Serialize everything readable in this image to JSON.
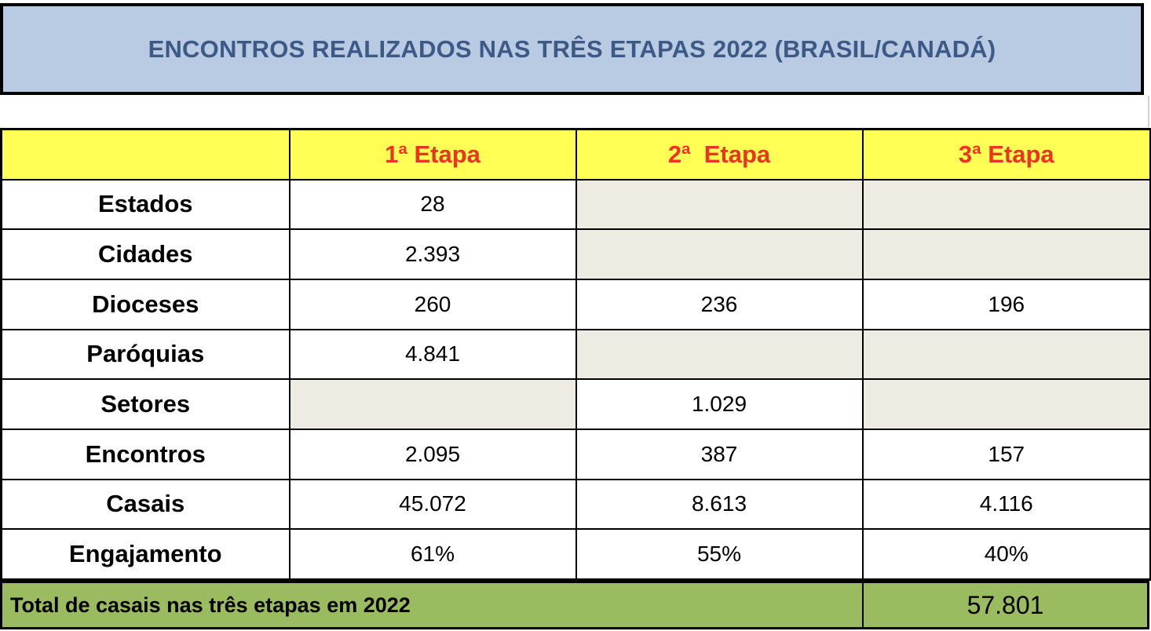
{
  "title": "ENCONTROS REALIZADOS NAS TRÊS ETAPAS 2022 (BRASIL/CANADÁ)",
  "headers": [
    "",
    "1ª Etapa",
    "2ª  Etapa",
    "3ª Etapa"
  ],
  "rows": [
    {
      "label": "Estados",
      "values": [
        "28",
        "",
        ""
      ]
    },
    {
      "label": "Cidades",
      "values": [
        "2.393",
        "",
        ""
      ]
    },
    {
      "label": "Dioceses",
      "values": [
        "260",
        "236",
        "196"
      ]
    },
    {
      "label": "Paróquias",
      "values": [
        "4.841",
        "",
        ""
      ]
    },
    {
      "label": "Setores",
      "values": [
        "",
        "1.029",
        ""
      ]
    },
    {
      "label": "Encontros",
      "values": [
        "2.095",
        "387",
        "157"
      ]
    },
    {
      "label": "Casais",
      "values": [
        "45.072",
        "8.613",
        "4.116"
      ]
    },
    {
      "label": "Engajamento",
      "values": [
        "61%",
        "55%",
        "40%"
      ]
    }
  ],
  "total": {
    "label": "Total de casais nas três etapas em 2022",
    "value": "57.801"
  },
  "colors": {
    "title_bg": "#b9cbe3",
    "title_text": "#3d5a87",
    "header_bg": "#ffff55",
    "header_text": "#ee3322",
    "empty_cell": "#edebe2",
    "total_bg": "#9bbb61"
  }
}
